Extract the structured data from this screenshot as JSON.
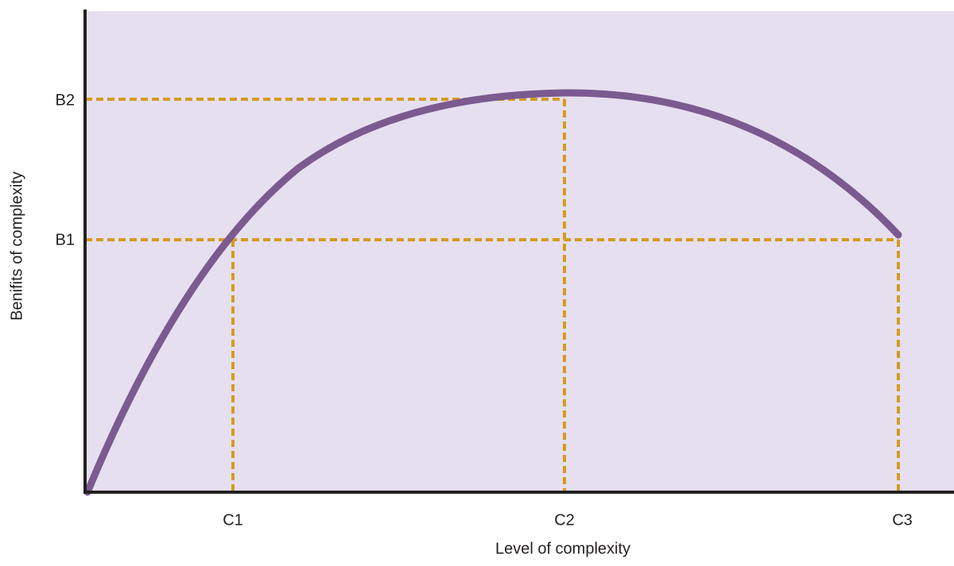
{
  "x_axis": {
    "label": "Level of complexity",
    "ticks": [
      "C1",
      "C2",
      "C3"
    ]
  },
  "y_axis": {
    "label": "Benifits of complexity",
    "ticks": [
      "B1",
      "B2"
    ]
  }
}
